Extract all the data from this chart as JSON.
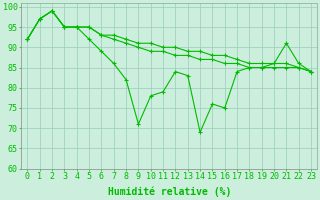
{
  "x": [
    0,
    1,
    2,
    3,
    4,
    5,
    6,
    7,
    8,
    9,
    10,
    11,
    12,
    13,
    14,
    15,
    16,
    17,
    18,
    19,
    20,
    21,
    22,
    23
  ],
  "series1": [
    92,
    97,
    99,
    95,
    95,
    95,
    93,
    92,
    91,
    90,
    89,
    89,
    88,
    88,
    87,
    87,
    86,
    86,
    85,
    85,
    85,
    85,
    85,
    84
  ],
  "series2": [
    92,
    97,
    99,
    95,
    95,
    95,
    93,
    93,
    92,
    91,
    91,
    90,
    90,
    89,
    89,
    88,
    88,
    87,
    86,
    86,
    86,
    86,
    85,
    84
  ],
  "series3": [
    92,
    97,
    99,
    95,
    95,
    92,
    89,
    86,
    82,
    71,
    78,
    79,
    84,
    83,
    69,
    76,
    75,
    84,
    85,
    85,
    86,
    91,
    86,
    84
  ],
  "line_color": "#00bb00",
  "bg_color": "#cceedd",
  "grid_color": "#99ccbb",
  "xlabel": "Humidité relative (%)",
  "ylim": [
    60,
    101
  ],
  "yticks": [
    60,
    65,
    70,
    75,
    80,
    85,
    90,
    95,
    100
  ],
  "tick_fontsize": 6,
  "xlabel_fontsize": 7
}
